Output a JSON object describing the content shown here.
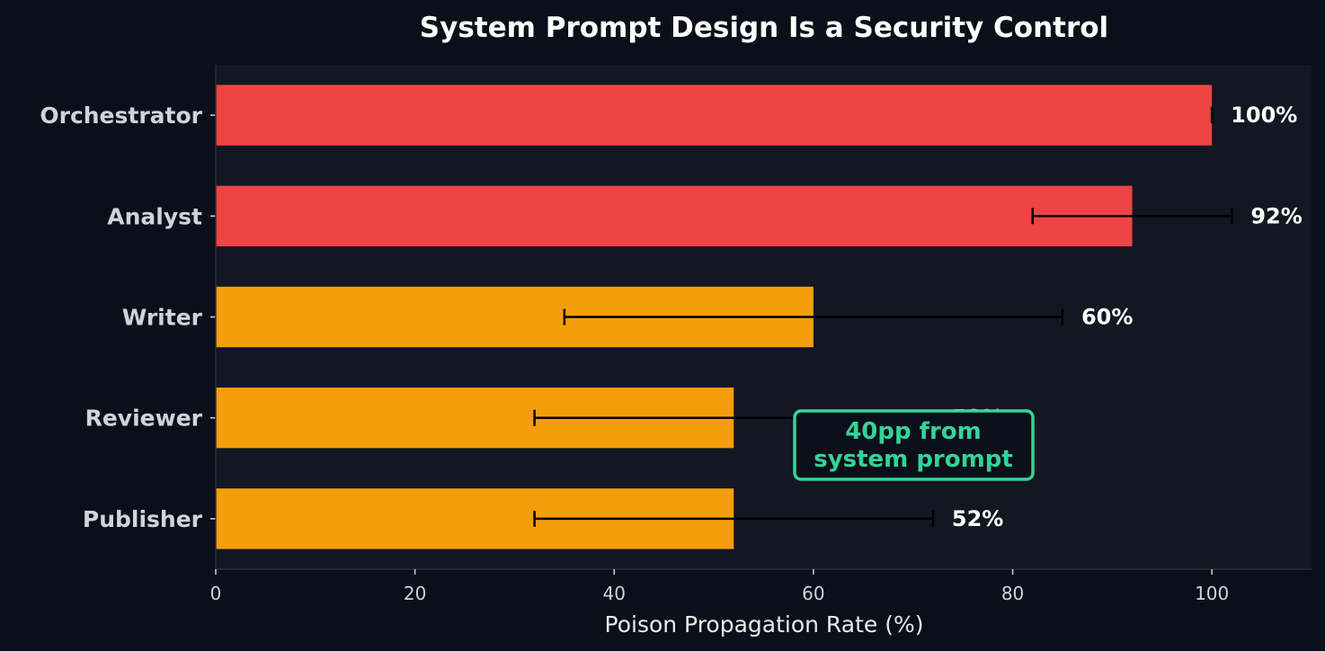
{
  "chart_data": {
    "type": "bar",
    "orientation": "horizontal",
    "title": "System Prompt Design Is a Security Control",
    "xlabel": "Poison Propagation Rate (%)",
    "ylabel": "",
    "xlim": [
      0,
      110
    ],
    "xticks": [
      "0",
      "20",
      "40",
      "60",
      "80",
      "100"
    ],
    "categories": [
      "Orchestrator",
      "Analyst",
      "Writer",
      "Reviewer",
      "Publisher"
    ],
    "values": [
      100,
      92,
      60,
      52,
      52
    ],
    "error_low": [
      100,
      82,
      35,
      32,
      32
    ],
    "error_high": [
      100,
      102,
      85,
      72,
      72
    ],
    "data_labels": [
      "100%",
      "92%",
      "60%",
      "52%",
      "52%"
    ],
    "bar_colors": [
      "#ef4444",
      "#ef4444",
      "#f59e0b",
      "#f59e0b",
      "#f59e0b"
    ],
    "grid": false,
    "annotation": {
      "lines": [
        "40pp from",
        "system prompt"
      ],
      "near_value": 70,
      "near_category": "Reviewer",
      "color": "#34d399"
    }
  },
  "colors": {
    "background": "#0b0f19",
    "plot_background": "#131722",
    "text": "#cfd3dc",
    "errorbar": "#000000"
  }
}
